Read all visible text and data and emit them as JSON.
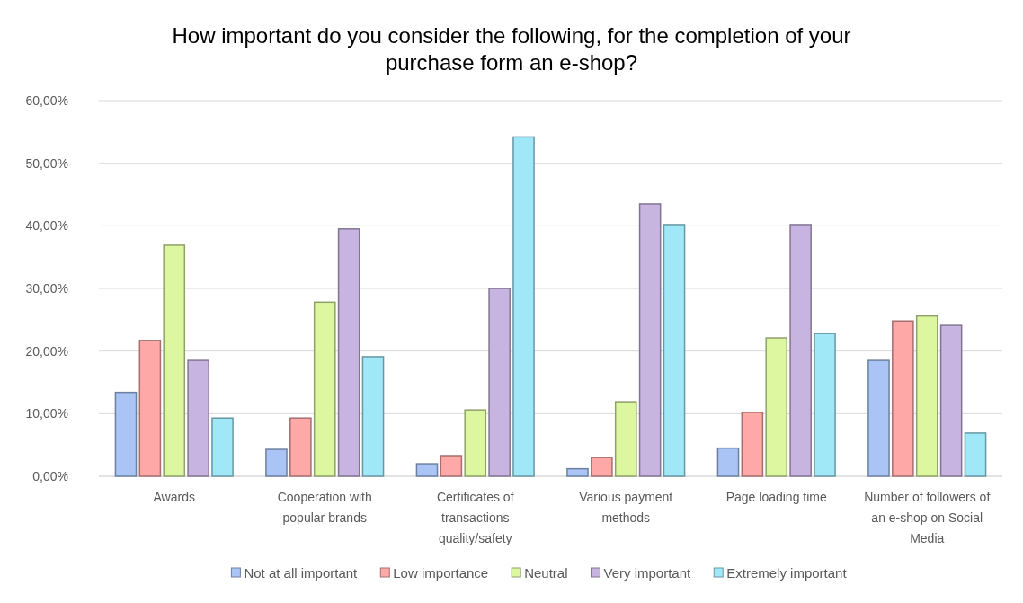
{
  "chart_data": {
    "type": "bar",
    "title": "How important do you consider the following, for the completion of your purchase form an e-shop?",
    "categories": [
      "Awards",
      "Cooperation with popular brands",
      "Certificates of transactions quality/safety",
      "Various payment methods",
      "Page loading time",
      "Number of followers of an e-shop on Social Media"
    ],
    "series": [
      {
        "name": "Not at all important",
        "color": "#a9c4f5",
        "values": [
          13.4,
          4.3,
          2.0,
          1.2,
          4.5,
          18.5
        ]
      },
      {
        "name": "Low importance",
        "color": "#ffa8a8",
        "values": [
          21.7,
          9.3,
          3.3,
          3.0,
          10.2,
          24.8
        ]
      },
      {
        "name": "Neutral",
        "color": "#dcf7a0",
        "values": [
          36.9,
          27.8,
          10.6,
          11.9,
          22.1,
          25.6
        ]
      },
      {
        "name": "Very important",
        "color": "#c8b4e0",
        "values": [
          18.5,
          39.5,
          30.0,
          43.5,
          40.2,
          24.1
        ]
      },
      {
        "name": "Extremely important",
        "color": "#a0e8f8",
        "values": [
          9.3,
          19.1,
          54.2,
          40.2,
          22.8,
          6.9
        ]
      }
    ],
    "ylim": [
      0,
      60
    ],
    "yticks": [
      {
        "value": 0,
        "label": "0,00%"
      },
      {
        "value": 10,
        "label": "10,00%"
      },
      {
        "value": 20,
        "label": "20,00%"
      },
      {
        "value": 30,
        "label": "30,00%"
      },
      {
        "value": 40,
        "label": "40,00%"
      },
      {
        "value": 50,
        "label": "50,00%"
      },
      {
        "value": 60,
        "label": "60,00%"
      }
    ],
    "grid": "y",
    "legend": "bottom"
  }
}
